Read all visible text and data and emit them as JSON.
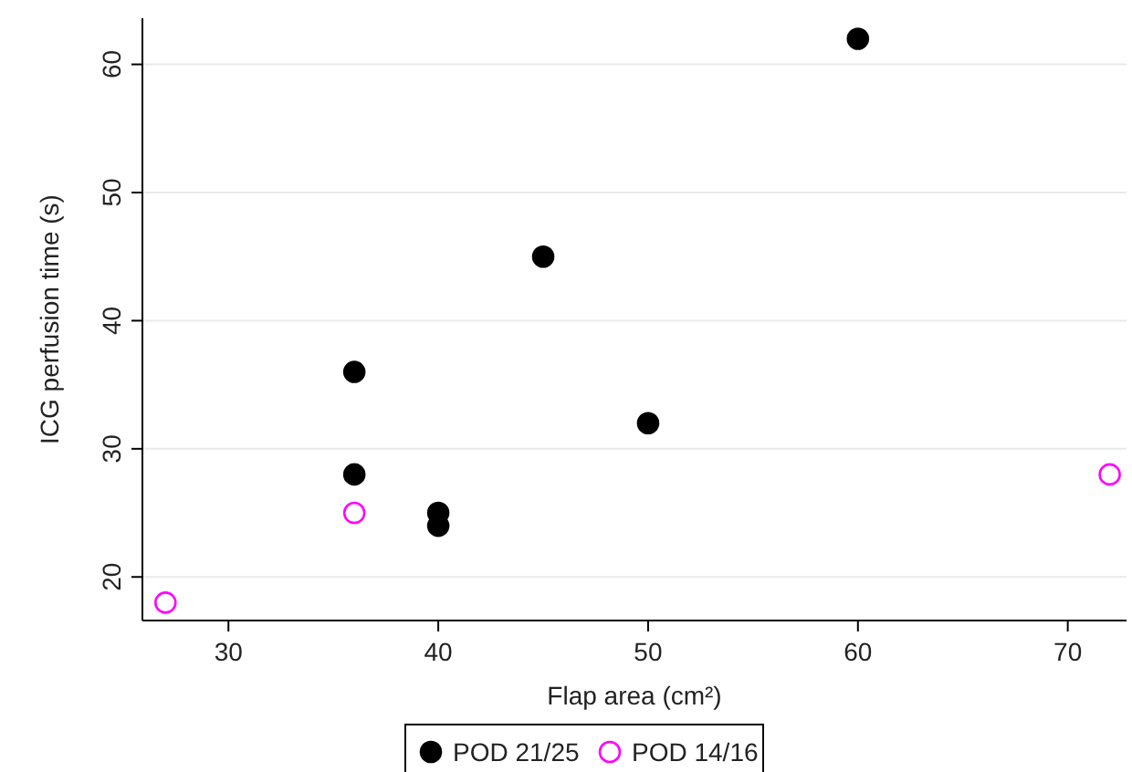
{
  "chart_data": {
    "type": "scatter",
    "xlabel": "Flap area (cm²)",
    "ylabel": "ICG perfusion time (s)",
    "xlim": [
      25.9,
      72.8
    ],
    "ylim": [
      16.6,
      63.6
    ],
    "xticks": [
      30,
      40,
      50,
      60,
      70
    ],
    "yticks": [
      20,
      30,
      40,
      50,
      60
    ],
    "grid": "y",
    "legend": "bottom",
    "marker": "circle",
    "series": [
      {
        "name": "POD 21/25",
        "color": "#000000",
        "x": [
          36,
          36,
          40,
          40,
          45,
          50,
          60
        ],
        "values": [
          36,
          28,
          25,
          24,
          45,
          32,
          62
        ]
      },
      {
        "name": "POD 14/16",
        "color": "#ff00ff",
        "x": [
          27,
          36,
          72
        ],
        "values": [
          18,
          25,
          28
        ]
      }
    ]
  }
}
